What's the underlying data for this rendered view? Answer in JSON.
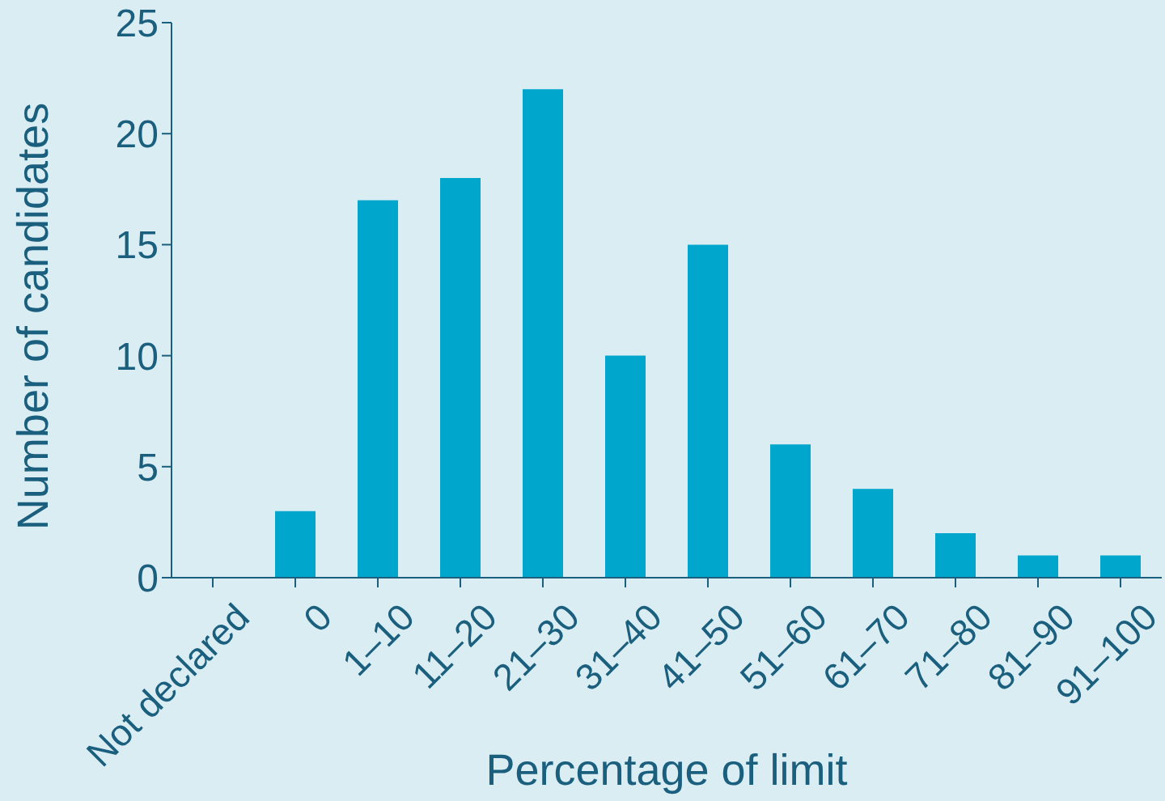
{
  "chart_data": {
    "type": "bar",
    "xlabel": "Percentage of limit",
    "ylabel": "Number of candidates",
    "categories": [
      "Not declared",
      "0",
      "1–10",
      "11–20",
      "21–30",
      "31–40",
      "41–50",
      "51–60",
      "61–70",
      "71–80",
      "81–90",
      "91–100"
    ],
    "values": [
      0,
      3,
      17,
      18,
      22,
      10,
      15,
      6,
      4,
      2,
      1,
      1
    ],
    "color": "#00a6cc",
    "ylim": [
      0,
      25
    ],
    "yticks": [
      0,
      5,
      10,
      15,
      20,
      25
    ],
    "grid": false,
    "legend": false
  }
}
